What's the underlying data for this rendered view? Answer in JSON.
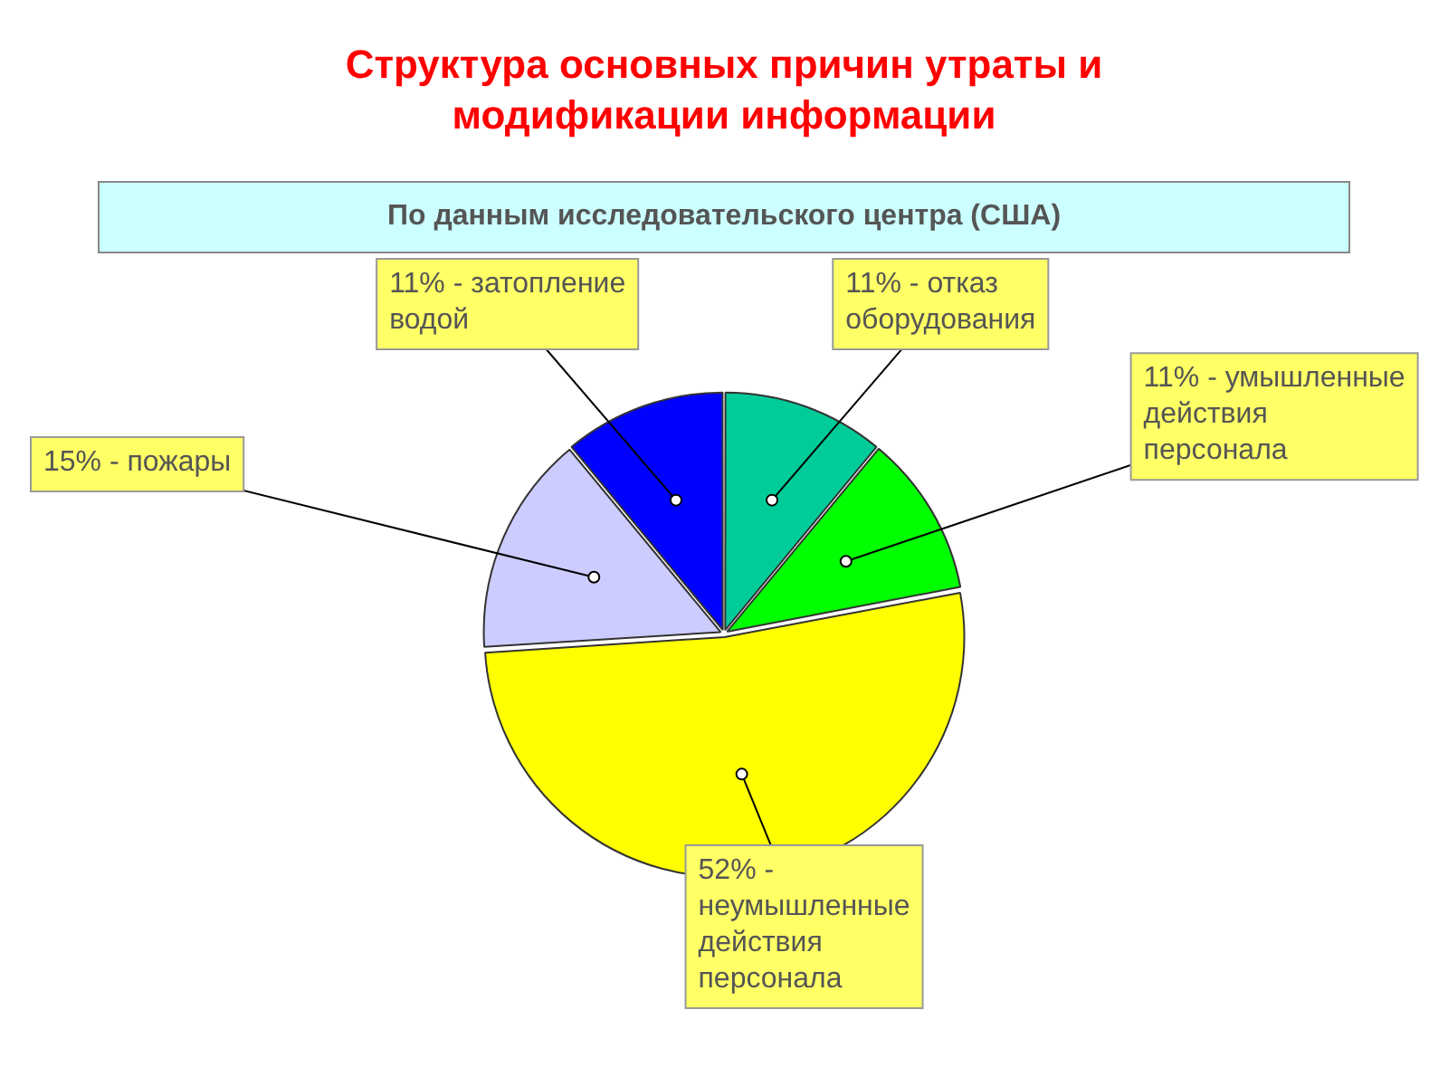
{
  "chart_data": {
    "type": "pie",
    "title": "Структура основных причин утраты и модификации информации",
    "subtitle": "По данным исследовательского центра (США)",
    "categories": [
      "отказ оборудования",
      "умышленные действия персонала",
      "неумышленные действия персонала",
      "пожары",
      "затопление водой"
    ],
    "values": [
      11,
      11,
      52,
      15,
      11
    ],
    "colors": [
      "#00cc99",
      "#00ff00",
      "#ffff00",
      "#ccccff",
      "#0000ff"
    ],
    "value_labels": [
      "11% -",
      "11% -",
      "52% -",
      "15% -",
      "11% -"
    ],
    "legend": false
  }
}
